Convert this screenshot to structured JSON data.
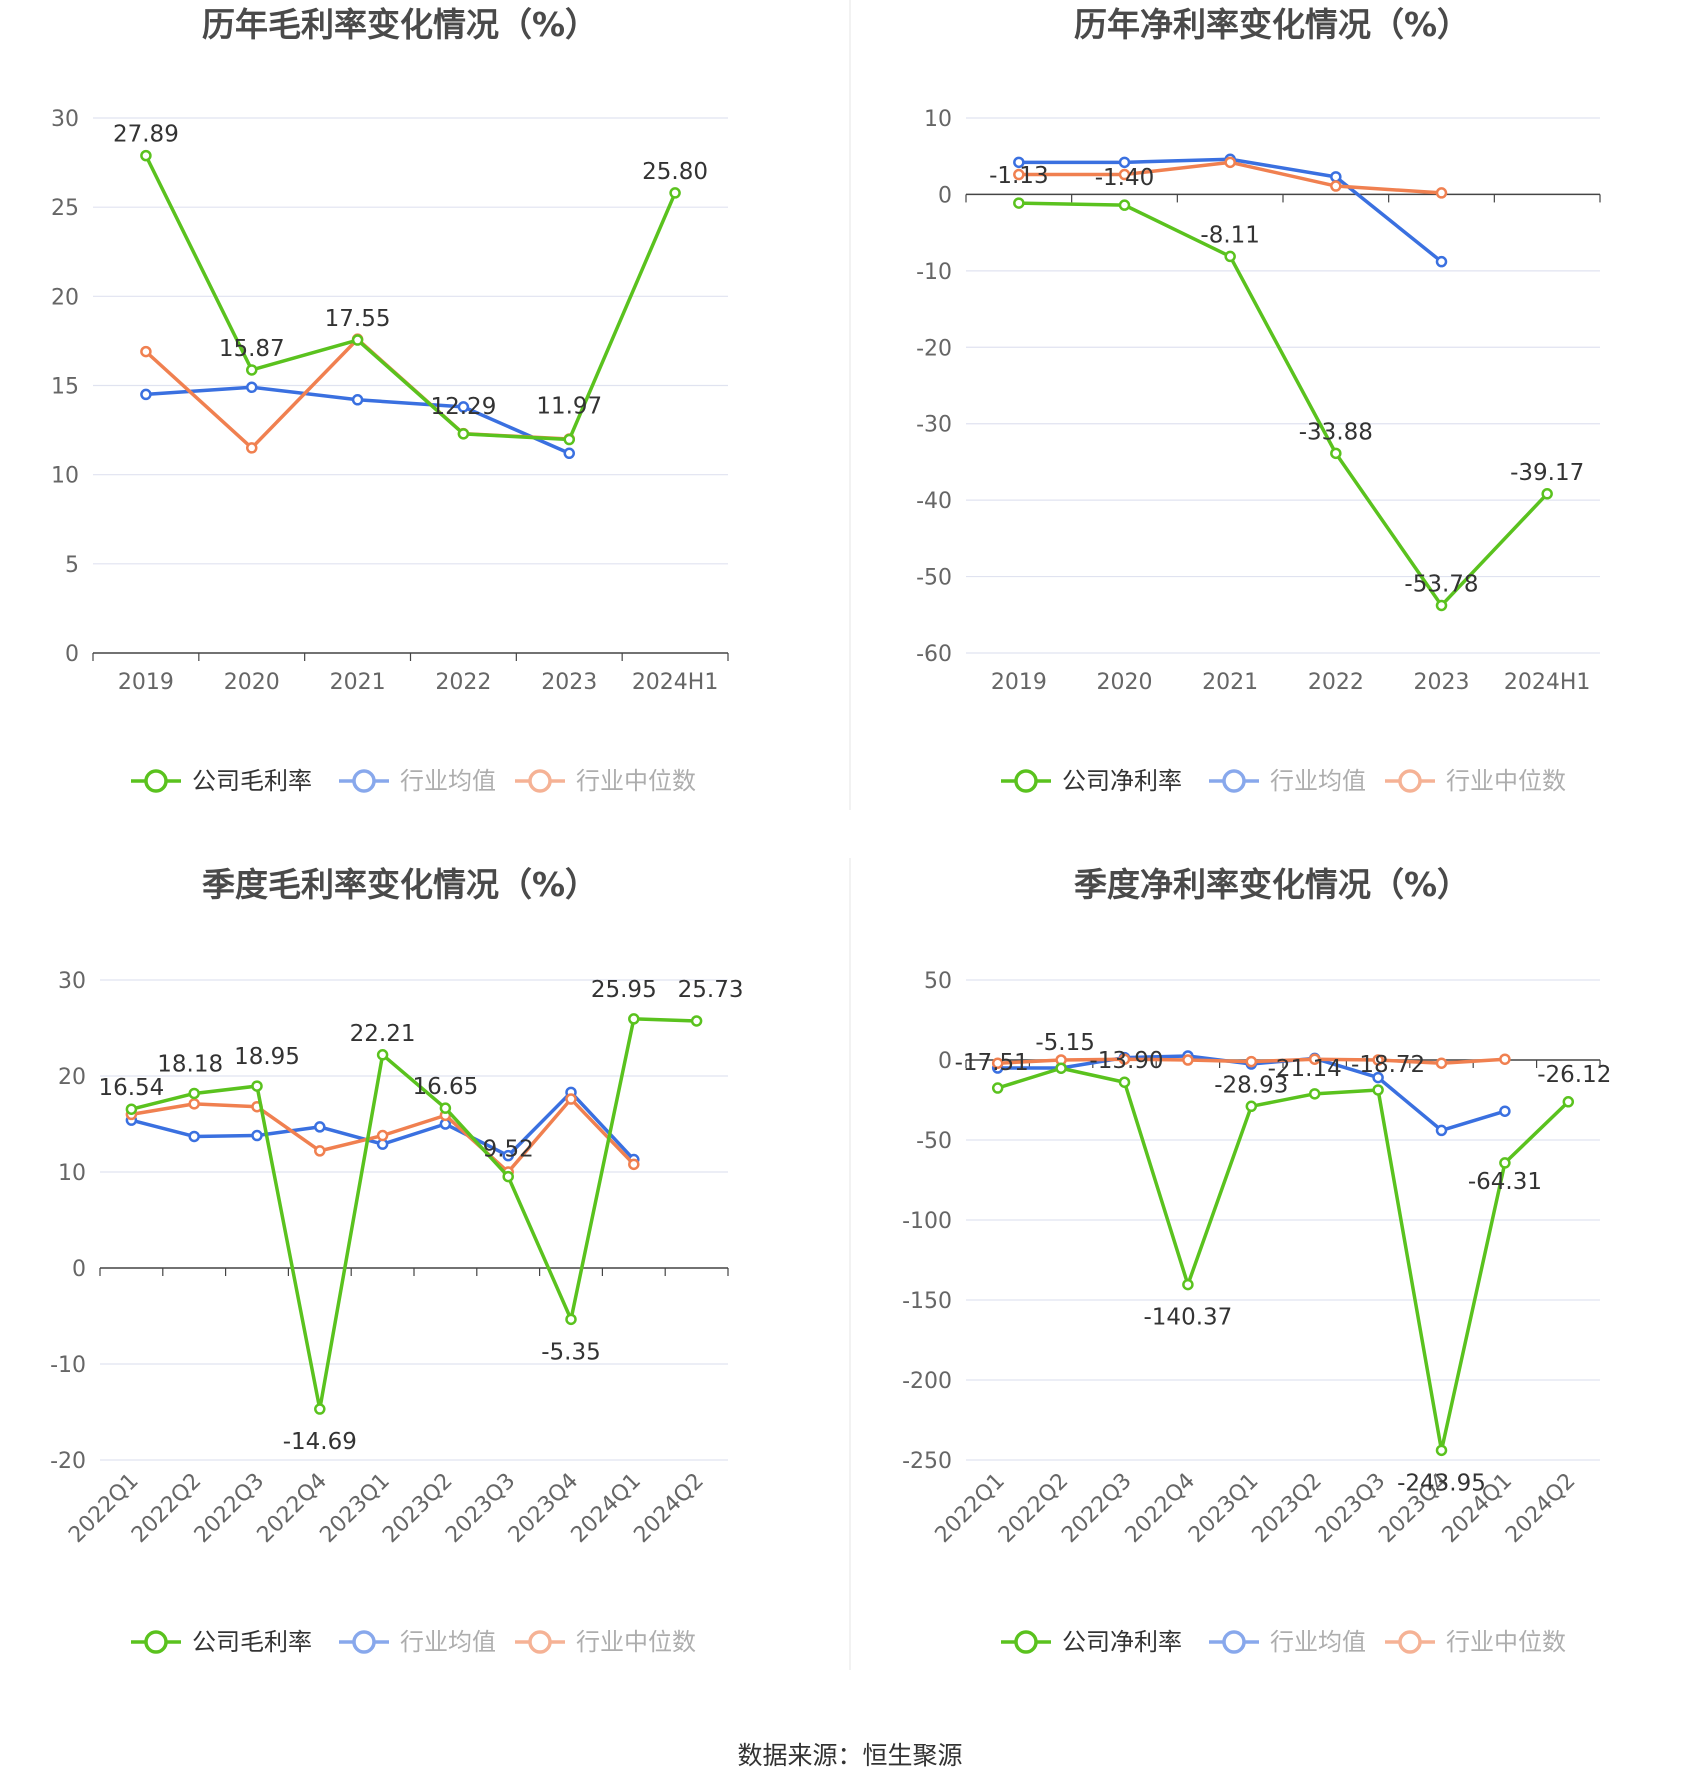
{
  "source": "数据来源：恒生聚源",
  "colors": {
    "company": "#5ac21e",
    "avg": "#3a70e0",
    "median": "#f08050",
    "grid": "#e0e3f0",
    "axis": "#444444"
  },
  "chart_data": [
    {
      "type": "line",
      "title": "历年毛利率变化情况（%）",
      "categories": [
        "2019",
        "2020",
        "2021",
        "2022",
        "2023",
        "2024H1"
      ],
      "ylim": [
        0,
        30
      ],
      "yticks": [
        0,
        5,
        10,
        15,
        20,
        25,
        30
      ],
      "grid": true,
      "legend_position": "bottom",
      "series": [
        {
          "name": "公司毛利率",
          "key": "company",
          "values": [
            27.89,
            15.87,
            17.55,
            12.29,
            11.97,
            25.8
          ],
          "labels": [
            "27.89",
            "15.87",
            "17.55",
            "12.29",
            "11.97",
            "25.80"
          ]
        },
        {
          "name": "行业均值",
          "key": "avg",
          "values": [
            14.5,
            14.9,
            14.2,
            13.8,
            11.2,
            null
          ]
        },
        {
          "name": "行业中位数",
          "key": "median",
          "values": [
            16.9,
            11.5,
            17.6,
            12.3,
            12.0,
            null
          ]
        }
      ]
    },
    {
      "type": "line",
      "title": "历年净利率变化情况（%）",
      "categories": [
        "2019",
        "2020",
        "2021",
        "2022",
        "2023",
        "2024H1"
      ],
      "ylim": [
        -60,
        10
      ],
      "yticks": [
        -60,
        -50,
        -40,
        -30,
        -20,
        -10,
        0,
        10
      ],
      "grid": true,
      "legend_position": "bottom",
      "series": [
        {
          "name": "公司净利率",
          "key": "company",
          "values": [
            -1.13,
            -1.4,
            -8.11,
            -33.88,
            -53.78,
            -39.17
          ],
          "labels": [
            "-1.13",
            "-1.40",
            "-8.11",
            "-33.88",
            "-53.78",
            "-39.17"
          ]
        },
        {
          "name": "行业均值",
          "key": "avg",
          "values": [
            4.2,
            4.2,
            4.6,
            2.3,
            -8.8,
            null
          ]
        },
        {
          "name": "行业中位数",
          "key": "median",
          "values": [
            2.6,
            2.6,
            4.2,
            1.1,
            0.2,
            null
          ]
        }
      ]
    },
    {
      "type": "line",
      "title": "季度毛利率变化情况（%）",
      "categories": [
        "2022Q1",
        "2022Q2",
        "2022Q3",
        "2022Q4",
        "2023Q1",
        "2023Q2",
        "2023Q3",
        "2023Q4",
        "2024Q1",
        "2024Q2"
      ],
      "ylim": [
        -20,
        30
      ],
      "yticks": [
        -20,
        -10,
        0,
        10,
        20,
        30
      ],
      "grid": true,
      "legend_position": "bottom",
      "series": [
        {
          "name": "公司毛利率",
          "key": "company",
          "values": [
            16.54,
            18.18,
            18.95,
            -14.69,
            22.21,
            16.65,
            9.52,
            -5.35,
            25.95,
            25.73
          ],
          "labels": [
            "16.54",
            "18.18",
            "18.95",
            "-14.69",
            "22.21",
            "16.65",
            "9.52",
            "-5.35",
            "25.95",
            "25.73"
          ]
        },
        {
          "name": "行业均值",
          "key": "avg",
          "values": [
            15.4,
            13.7,
            13.8,
            14.7,
            12.9,
            15.0,
            11.7,
            18.3,
            11.3,
            null
          ]
        },
        {
          "name": "行业中位数",
          "key": "median",
          "values": [
            16.0,
            17.1,
            16.8,
            12.2,
            13.8,
            15.9,
            10.0,
            17.6,
            10.8,
            null
          ]
        }
      ]
    },
    {
      "type": "line",
      "title": "季度净利率变化情况（%）",
      "categories": [
        "2022Q1",
        "2022Q2",
        "2022Q3",
        "2022Q4",
        "2023Q1",
        "2023Q2",
        "2023Q3",
        "2023Q4",
        "2024Q1",
        "2024Q2"
      ],
      "ylim": [
        -250,
        50
      ],
      "yticks": [
        -250,
        -200,
        -150,
        -100,
        -50,
        0,
        50
      ],
      "grid": true,
      "legend_position": "bottom",
      "series": [
        {
          "name": "公司净利率",
          "key": "company",
          "values": [
            -17.51,
            -5.15,
            -13.9,
            -140.37,
            -28.93,
            -21.14,
            -18.72,
            -243.95,
            -64.31,
            -26.12
          ],
          "labels": [
            "-17.51",
            "-5.15",
            "-13.90",
            "-140.37",
            "-28.93",
            "-21.14",
            "-18.72",
            "-243.95",
            "-64.31",
            "-26.12"
          ]
        },
        {
          "name": "行业均值",
          "key": "avg",
          "values": [
            -5.0,
            -5.0,
            1.5,
            2.5,
            -2.5,
            1.0,
            -11.0,
            -44.0,
            -32.0,
            null
          ]
        },
        {
          "name": "行业中位数",
          "key": "median",
          "values": [
            -2.0,
            0.0,
            0.5,
            0.0,
            -1.0,
            0.5,
            0.0,
            -2.0,
            0.5,
            null
          ]
        }
      ]
    }
  ]
}
